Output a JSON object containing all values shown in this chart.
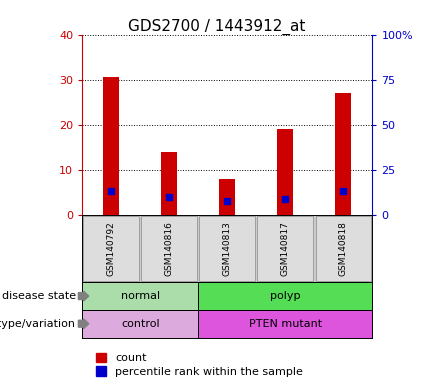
{
  "title": "GDS2700 / 1443912_at",
  "samples": [
    "GSM140792",
    "GSM140816",
    "GSM140813",
    "GSM140817",
    "GSM140818"
  ],
  "counts": [
    30.5,
    14.0,
    8.0,
    19.0,
    27.0
  ],
  "percentile_ranks": [
    13.5,
    10.0,
    8.0,
    9.0,
    13.5
  ],
  "left_ylim": [
    0,
    40
  ],
  "right_ylim": [
    0,
    100
  ],
  "left_yticks": [
    0,
    10,
    20,
    30,
    40
  ],
  "right_yticks": [
    0,
    25,
    50,
    75,
    100
  ],
  "right_yticklabels": [
    "0",
    "25",
    "50",
    "75",
    "100%"
  ],
  "bar_color": "#cc0000",
  "marker_color": "#0000cc",
  "disease_groups": [
    {
      "label": "normal",
      "start": 0,
      "end": 2,
      "color": "#aaddaa"
    },
    {
      "label": "polyp",
      "start": 2,
      "end": 5,
      "color": "#55dd55"
    }
  ],
  "genotype_groups": [
    {
      "label": "control",
      "start": 0,
      "end": 2,
      "color": "#ddaadd"
    },
    {
      "label": "PTEN mutant",
      "start": 2,
      "end": 5,
      "color": "#dd55dd"
    }
  ],
  "row_labels": [
    "disease state",
    "genotype/variation"
  ],
  "legend_items": [
    {
      "label": "count",
      "color": "#cc0000"
    },
    {
      "label": "percentile rank within the sample",
      "color": "#0000cc"
    }
  ],
  "title_fontsize": 11,
  "tick_fontsize": 8,
  "sample_fontsize": 6.5,
  "row_fontsize": 8,
  "legend_fontsize": 8,
  "left_tick_color": "#cc0000",
  "right_tick_color": "#0000cc"
}
